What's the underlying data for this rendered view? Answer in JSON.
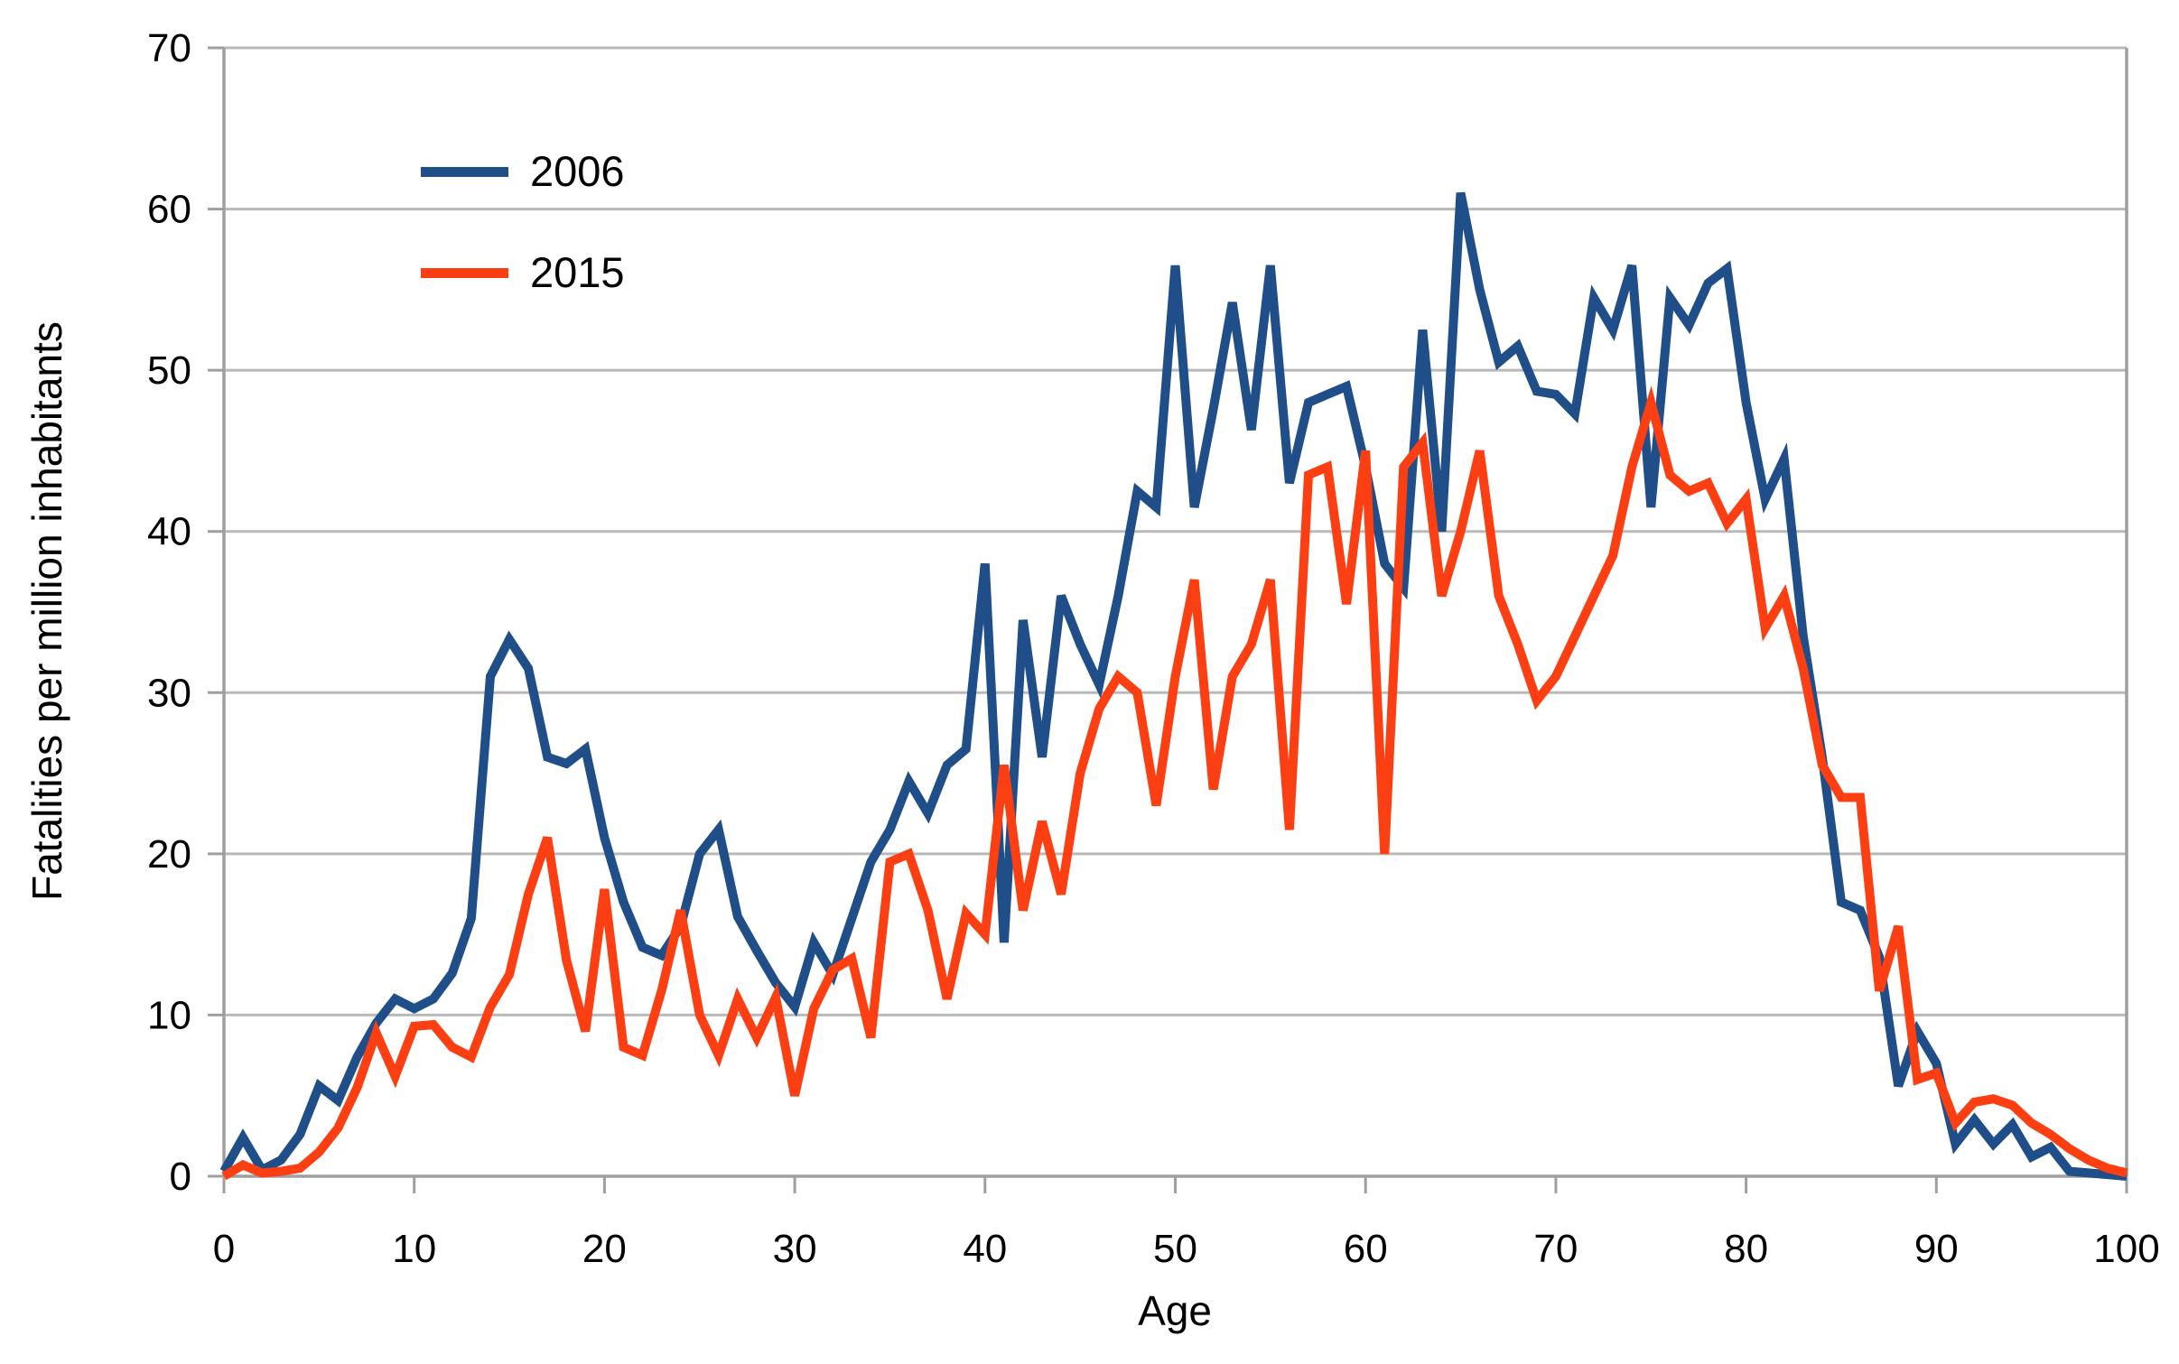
{
  "chart_data": {
    "type": "line",
    "title": "",
    "xlabel": "Age",
    "ylabel": "Fatalities per million inhabitants",
    "xlim": [
      0,
      100
    ],
    "ylim": [
      0,
      70
    ],
    "x_ticks": [
      0,
      10,
      20,
      30,
      40,
      50,
      60,
      70,
      80,
      90,
      100
    ],
    "y_ticks": [
      0,
      10,
      20,
      30,
      40,
      50,
      60,
      70
    ],
    "grid": "horizontal-only",
    "legend_position": "inside-top-left",
    "x_start": 0,
    "x_step": 1,
    "series": [
      {
        "name": "2006",
        "color": "#1F4E89",
        "values": [
          0.3,
          2.4,
          0.4,
          1.0,
          2.6,
          5.6,
          4.7,
          7.4,
          9.5,
          11,
          10.4,
          11,
          12.6,
          16,
          31,
          33.3,
          31.5,
          26,
          25.6,
          26.5,
          21,
          17,
          14.2,
          13.7,
          15.5,
          20,
          21.5,
          16.1,
          14,
          12,
          10.5,
          14.5,
          12.5,
          16,
          19.5,
          21.5,
          24.5,
          22.5,
          25.5,
          26.5,
          38,
          14.5,
          34.5,
          26,
          36,
          33,
          30.5,
          36,
          42.5,
          41.5,
          56.5,
          41.5,
          47.6,
          54.2,
          46.3,
          56.5,
          43,
          48,
          48.5,
          49,
          44,
          38,
          36.5,
          52.5,
          40,
          61,
          55,
          50.5,
          51.5,
          48.7,
          48.5,
          47.3,
          54.5,
          52.5,
          56.5,
          41.5,
          54.5,
          52.8,
          55.4,
          56.3,
          48,
          42,
          44.5,
          33.5,
          26,
          17,
          16.5,
          13.6,
          5.6,
          9,
          7,
          2,
          3.5,
          2,
          3.2,
          1.2,
          1.8,
          0.3,
          0.2,
          0.1,
          0
        ]
      },
      {
        "name": "2015",
        "color": "#FC3F13",
        "values": [
          0,
          0.7,
          0.2,
          0.3,
          0.5,
          1.5,
          3,
          5.5,
          8.9,
          6.2,
          9.3,
          9.4,
          8,
          7.4,
          10.5,
          12.5,
          17.5,
          21,
          13.4,
          9,
          17.8,
          8,
          7.5,
          11.5,
          16.5,
          10,
          7.5,
          11,
          8.6,
          11.1,
          5,
          10.4,
          12.8,
          13.5,
          8.6,
          19.5,
          20,
          16.5,
          11,
          16.3,
          15,
          25.5,
          16.5,
          22,
          17.5,
          25,
          29,
          31,
          30,
          23,
          31,
          37,
          24,
          31,
          33,
          37,
          21.5,
          43.5,
          44,
          35.5,
          45,
          20,
          44,
          45.5,
          36,
          40,
          45,
          36,
          33,
          29.5,
          31,
          33.5,
          36,
          38.5,
          44,
          48,
          43.5,
          42.5,
          43,
          40.5,
          42,
          34,
          36,
          31.5,
          25.5,
          23.5,
          23.5,
          11.5,
          15.5,
          6,
          6.4,
          3.3,
          4.6,
          4.8,
          4.4,
          3.3,
          2.6,
          1.7,
          1.0,
          0.5,
          0.2
        ]
      }
    ]
  },
  "style": {
    "grid_color": "#b9b9b9",
    "axis_color": "#9f9f9f",
    "text_color": "#000000",
    "background": "#ffffff"
  }
}
